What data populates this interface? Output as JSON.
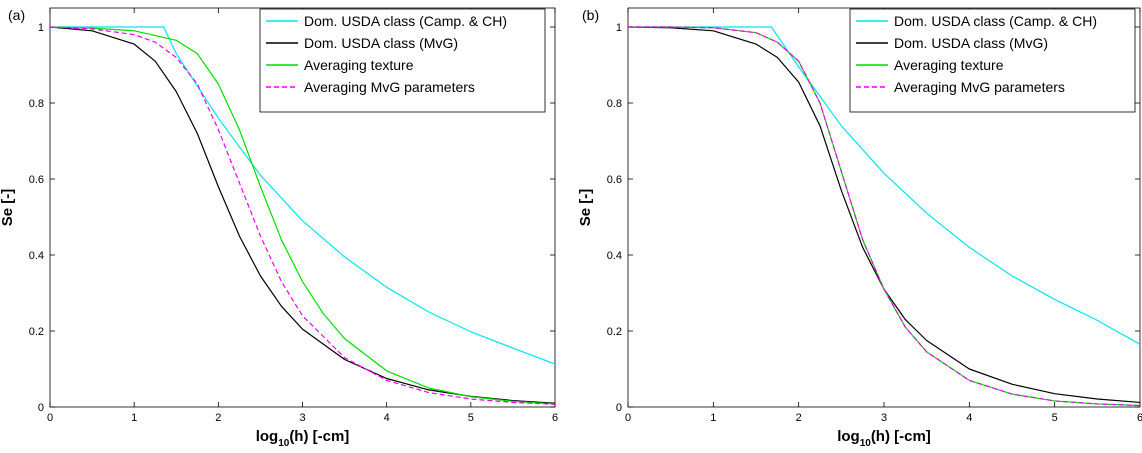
{
  "chart_data": [
    {
      "type": "line",
      "panel_label": "(a)",
      "xlabel_base": "log",
      "xlabel_sub": "10",
      "xlabel_rest": "(h) [-cm]",
      "ylabel": "Se [-]",
      "xlim": [
        0,
        6
      ],
      "ylim": [
        0,
        1.05
      ],
      "xticks": [
        0,
        1,
        2,
        3,
        4,
        5,
        6
      ],
      "yticks": [
        0,
        0.2,
        0.4,
        0.6,
        0.8,
        1
      ],
      "ytick_labels": [
        "0",
        "0.2",
        "0.4",
        "0.6",
        "0.8",
        "1"
      ],
      "grid": false,
      "legend_position": "top-right",
      "series": [
        {
          "name": "Dom. USDA class (Camp. & CH)",
          "color": "#00e5ee",
          "dash": "solid",
          "x": [
            0,
            1.35,
            1.5,
            2.0,
            2.5,
            3.0,
            3.5,
            4.0,
            4.5,
            5.0,
            5.5,
            6.0
          ],
          "y": [
            1.0,
            1.0,
            0.93,
            0.76,
            0.61,
            0.49,
            0.395,
            0.315,
            0.25,
            0.198,
            0.155,
            0.113
          ]
        },
        {
          "name": "Dom. USDA class (MvG)",
          "color": "#000000",
          "dash": "solid",
          "x": [
            0,
            0.5,
            1.0,
            1.25,
            1.5,
            1.75,
            2.0,
            2.25,
            2.5,
            2.75,
            3.0,
            3.5,
            4.0,
            4.5,
            5.0,
            5.5,
            6.0
          ],
          "y": [
            1.0,
            0.99,
            0.955,
            0.91,
            0.83,
            0.72,
            0.58,
            0.45,
            0.345,
            0.265,
            0.205,
            0.125,
            0.075,
            0.045,
            0.028,
            0.017,
            0.01
          ]
        },
        {
          "name": "Averaging texture",
          "color": "#00dd00",
          "dash": "solid",
          "x": [
            0,
            0.5,
            1.0,
            1.5,
            1.75,
            2.0,
            2.25,
            2.5,
            2.75,
            3.0,
            3.25,
            3.5,
            4.0,
            4.5,
            5.0,
            5.5,
            6.0
          ],
          "y": [
            1.0,
            0.997,
            0.99,
            0.965,
            0.93,
            0.85,
            0.73,
            0.58,
            0.44,
            0.33,
            0.245,
            0.18,
            0.095,
            0.05,
            0.027,
            0.015,
            0.008
          ]
        },
        {
          "name": "Averaging MvG parameters",
          "color": "#ee00ee",
          "dash": "dashed",
          "x": [
            0,
            0.5,
            1.0,
            1.25,
            1.5,
            1.75,
            2.0,
            2.25,
            2.5,
            2.75,
            3.0,
            3.5,
            4.0,
            4.5,
            5.0,
            5.5,
            6.0
          ],
          "y": [
            1.0,
            0.995,
            0.98,
            0.96,
            0.92,
            0.85,
            0.73,
            0.59,
            0.45,
            0.33,
            0.24,
            0.13,
            0.07,
            0.038,
            0.021,
            0.012,
            0.007
          ]
        }
      ]
    },
    {
      "type": "line",
      "panel_label": "(b)",
      "xlabel_base": "log",
      "xlabel_sub": "10",
      "xlabel_rest": "(h) [-cm]",
      "ylabel": "Se [-]",
      "xlim": [
        0,
        6
      ],
      "ylim": [
        0,
        1.05
      ],
      "xticks": [
        0,
        1,
        2,
        3,
        4,
        5,
        6
      ],
      "yticks": [
        0,
        0.2,
        0.4,
        0.6,
        0.8,
        1
      ],
      "ytick_labels": [
        "0",
        "0.2",
        "0.4",
        "0.6",
        "0.8",
        "1"
      ],
      "grid": false,
      "legend_position": "top-right",
      "series": [
        {
          "name": "Dom. USDA class (Camp. & CH)",
          "color": "#00e5ee",
          "dash": "solid",
          "x": [
            0,
            1.68,
            2.0,
            2.5,
            3.0,
            3.5,
            4.0,
            4.5,
            5.0,
            5.5,
            6.0
          ],
          "y": [
            1.0,
            1.0,
            0.895,
            0.74,
            0.615,
            0.51,
            0.42,
            0.345,
            0.283,
            0.228,
            0.165
          ]
        },
        {
          "name": "Dom. USDA class (MvG)",
          "color": "#000000",
          "dash": "solid",
          "x": [
            0,
            0.5,
            1.0,
            1.5,
            1.75,
            2.0,
            2.25,
            2.5,
            2.75,
            3.0,
            3.25,
            3.5,
            4.0,
            4.5,
            5.0,
            5.5,
            6.0
          ],
          "y": [
            1.0,
            0.998,
            0.99,
            0.955,
            0.92,
            0.855,
            0.74,
            0.57,
            0.42,
            0.31,
            0.23,
            0.175,
            0.1,
            0.06,
            0.035,
            0.021,
            0.012
          ]
        },
        {
          "name": "Averaging texture",
          "color": "#00dd00",
          "dash": "solid",
          "x": [
            0,
            0.5,
            1.0,
            1.5,
            1.75,
            2.0,
            2.25,
            2.5,
            2.75,
            3.0,
            3.25,
            3.5,
            4.0,
            4.5,
            5.0,
            5.5,
            6.0
          ],
          "y": [
            1.0,
            1.0,
            0.998,
            0.985,
            0.96,
            0.91,
            0.8,
            0.62,
            0.44,
            0.31,
            0.21,
            0.145,
            0.07,
            0.034,
            0.016,
            0.008,
            0.004
          ]
        },
        {
          "name": "Averaging MvG parameters",
          "color": "#ee00ee",
          "dash": "dashed",
          "x": [
            0,
            0.5,
            1.0,
            1.5,
            1.75,
            2.0,
            2.25,
            2.5,
            2.75,
            3.0,
            3.25,
            3.5,
            4.0,
            4.5,
            5.0,
            5.5,
            6.0
          ],
          "y": [
            1.0,
            1.0,
            0.998,
            0.985,
            0.96,
            0.91,
            0.8,
            0.62,
            0.44,
            0.31,
            0.21,
            0.145,
            0.07,
            0.034,
            0.016,
            0.008,
            0.004
          ]
        }
      ]
    }
  ]
}
